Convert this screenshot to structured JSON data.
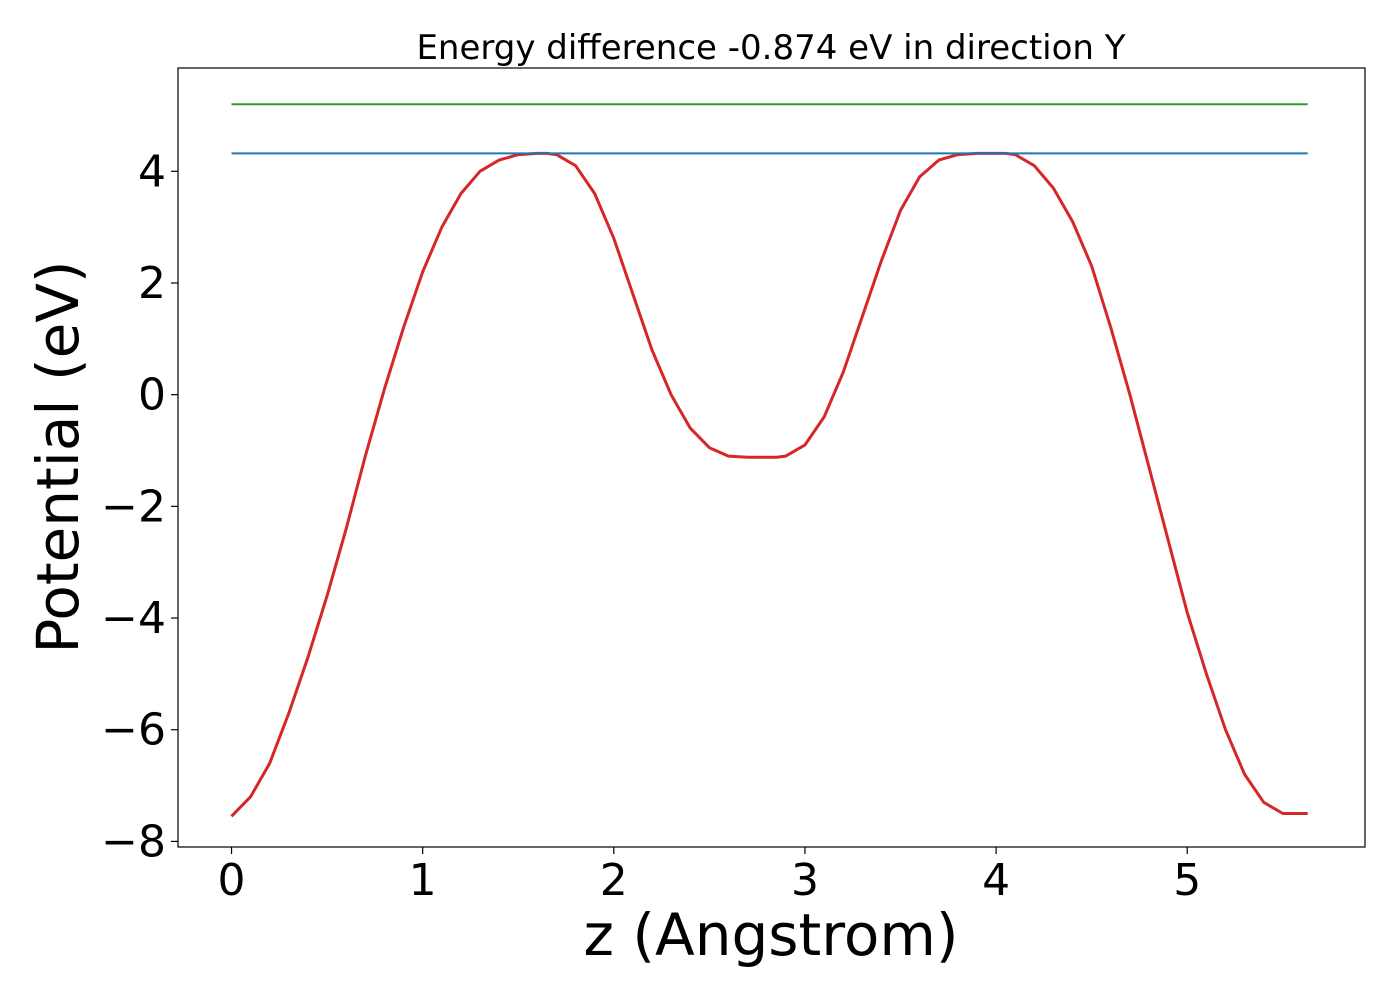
{
  "chart_data": {
    "type": "line",
    "title": "Energy difference -0.874 eV in direction Y",
    "xlabel": "z (Angstrom)",
    "ylabel": "Potential (eV)",
    "xlim": [
      -0.28,
      5.93
    ],
    "ylim": [
      -8.1,
      5.85
    ],
    "xticks": [
      0,
      1,
      2,
      3,
      4,
      5
    ],
    "xtick_labels": [
      "0",
      "1",
      "2",
      "3",
      "4",
      "5"
    ],
    "yticks": [
      -8,
      -6,
      -4,
      -2,
      0,
      2,
      4
    ],
    "ytick_labels": [
      "−8",
      "−6",
      "−4",
      "−2",
      "0",
      "2",
      "4"
    ],
    "grid": false,
    "legend": "none",
    "series": [
      {
        "color": "#d62728",
        "x": [
          0,
          0.1,
          0.2,
          0.3,
          0.4,
          0.5,
          0.6,
          0.7,
          0.8,
          0.9,
          1.0,
          1.1,
          1.2,
          1.3,
          1.4,
          1.5,
          1.6,
          1.65,
          1.7,
          1.8,
          1.9,
          2.0,
          2.1,
          2.2,
          2.3,
          2.4,
          2.5,
          2.6,
          2.7,
          2.8,
          2.85,
          2.9,
          3.0,
          3.1,
          3.2,
          3.3,
          3.4,
          3.5,
          3.6,
          3.7,
          3.8,
          3.9,
          4.0,
          4.05,
          4.1,
          4.2,
          4.3,
          4.4,
          4.5,
          4.6,
          4.7,
          4.8,
          4.9,
          5.0,
          5.1,
          5.2,
          5.3,
          5.4,
          5.5,
          5.6,
          5.63
        ],
        "y": [
          -7.55,
          -7.2,
          -6.6,
          -5.7,
          -4.7,
          -3.6,
          -2.4,
          -1.1,
          0.1,
          1.2,
          2.2,
          3.0,
          3.6,
          4.0,
          4.2,
          4.3,
          4.32,
          4.32,
          4.3,
          4.1,
          3.6,
          2.8,
          1.8,
          0.8,
          0.0,
          -0.6,
          -0.95,
          -1.1,
          -1.12,
          -1.12,
          -1.12,
          -1.1,
          -0.9,
          -0.4,
          0.4,
          1.4,
          2.4,
          3.3,
          3.9,
          4.2,
          4.3,
          4.32,
          4.32,
          4.32,
          4.3,
          4.1,
          3.7,
          3.1,
          2.3,
          1.2,
          0.0,
          -1.3,
          -2.6,
          -3.9,
          -5.0,
          -6.0,
          -6.8,
          -7.3,
          -7.5,
          -7.5,
          -7.5
        ]
      },
      {
        "color": "#1f77b4",
        "x": [
          0,
          5.63
        ],
        "y": [
          4.32,
          4.32
        ]
      },
      {
        "color": "#2ca02c",
        "x": [
          0,
          5.63
        ],
        "y": [
          5.2,
          5.2
        ]
      }
    ]
  }
}
